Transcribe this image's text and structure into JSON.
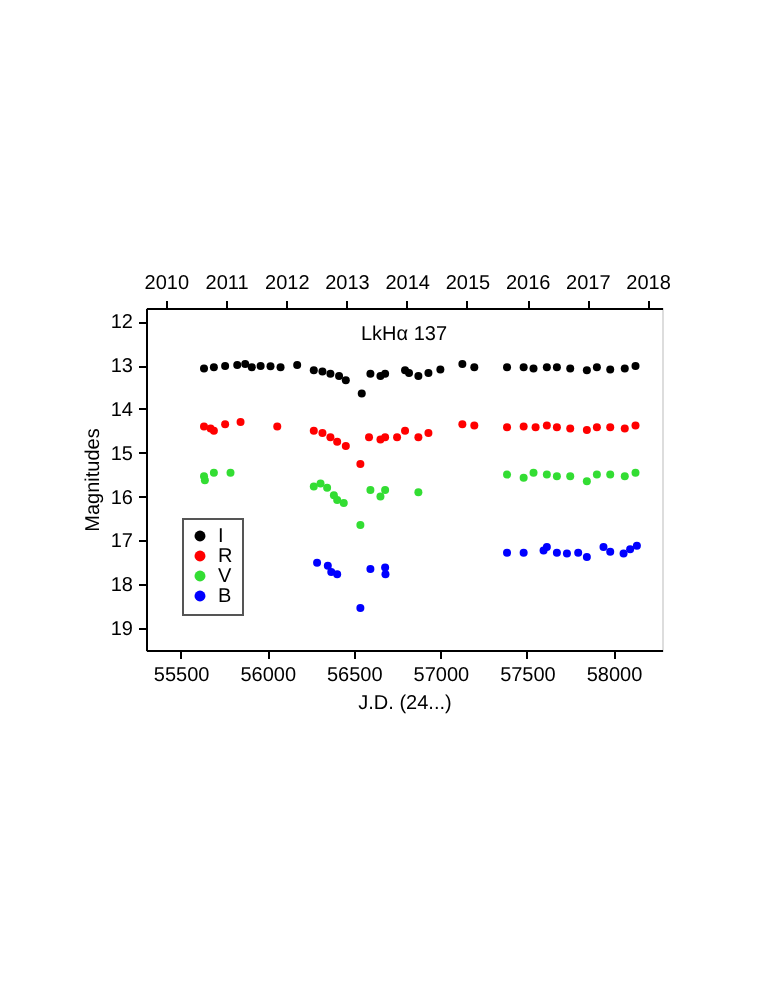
{
  "chart_data": {
    "type": "scatter",
    "title": "LkHα 137",
    "xlabel": "J.D. (24...)",
    "ylabel": "Magnitudes",
    "xlim": [
      55300,
      58280
    ],
    "xticks": [
      55500,
      56000,
      56500,
      57000,
      57500,
      58000
    ],
    "ylim": [
      19.5,
      11.7
    ],
    "yticks": [
      12,
      13,
      14,
      15,
      16,
      17,
      18,
      19
    ],
    "x2lim": [
      2009.67,
      2018.24
    ],
    "x2ticks": [
      2010,
      2011,
      2012,
      2013,
      2014,
      2015,
      2016,
      2017,
      2018
    ],
    "marker": "circle",
    "grid": false,
    "legend": "bottom left",
    "series": [
      {
        "name": "I",
        "color": "#000000",
        "x": [
          55635,
          55692,
          55757,
          55827,
          55873,
          55911,
          55962,
          56019,
          56077,
          56173,
          56269,
          56319,
          56365,
          56415,
          56454,
          56546,
          56596,
          56654,
          56681,
          56796,
          56819,
          56873,
          56931,
          57000,
          57127,
          57196,
          57385,
          57481,
          57538,
          57615,
          57673,
          57750,
          57846,
          57904,
          57981,
          58065,
          58127
        ],
        "values": [
          13.08,
          13.05,
          13.02,
          13.0,
          12.98,
          13.05,
          13.02,
          13.03,
          13.05,
          13.0,
          13.12,
          13.15,
          13.2,
          13.25,
          13.35,
          13.65,
          13.2,
          13.25,
          13.2,
          13.12,
          13.18,
          13.25,
          13.18,
          13.1,
          12.98,
          13.05,
          13.05,
          13.05,
          13.08,
          13.05,
          13.05,
          13.08,
          13.12,
          13.05,
          13.1,
          13.08,
          13.02
        ]
      },
      {
        "name": "R",
        "color": "#ff0000",
        "x": [
          55635,
          55673,
          55692,
          55757,
          55846,
          56058,
          56269,
          56319,
          56365,
          56404,
          56454,
          56538,
          56588,
          56654,
          56681,
          56750,
          56796,
          56873,
          56931,
          57127,
          57196,
          57385,
          57481,
          57550,
          57615,
          57673,
          57750,
          57846,
          57904,
          57981,
          58065,
          58127
        ],
        "values": [
          14.4,
          14.45,
          14.5,
          14.35,
          14.3,
          14.4,
          14.5,
          14.55,
          14.65,
          14.75,
          14.85,
          15.26,
          14.65,
          14.7,
          14.65,
          14.65,
          14.5,
          14.65,
          14.55,
          14.35,
          14.38,
          14.42,
          14.4,
          14.42,
          14.38,
          14.42,
          14.45,
          14.48,
          14.42,
          14.42,
          14.45,
          14.38
        ]
      },
      {
        "name": "V",
        "color": "#33dd33",
        "x": [
          55635,
          55640,
          55692,
          55788,
          56269,
          56308,
          56346,
          56385,
          56404,
          56442,
          56538,
          56596,
          56654,
          56681,
          56873,
          57385,
          57481,
          57538,
          57615,
          57673,
          57750,
          57846,
          57904,
          57981,
          58065,
          58127
        ],
        "values": [
          15.54,
          15.63,
          15.46,
          15.46,
          15.77,
          15.7,
          15.8,
          15.97,
          16.08,
          16.15,
          16.65,
          15.85,
          16.0,
          15.85,
          15.9,
          15.5,
          15.57,
          15.46,
          15.5,
          15.54,
          15.54,
          15.65,
          15.5,
          15.5,
          15.54,
          15.46
        ]
      },
      {
        "name": "B",
        "color": "#0000ff",
        "x": [
          56288,
          56350,
          56370,
          56404,
          56538,
          56596,
          56681,
          56683,
          57385,
          57481,
          57596,
          57615,
          57673,
          57731,
          57796,
          57846,
          57942,
          57981,
          58058,
          58096,
          58135
        ],
        "values": [
          17.51,
          17.58,
          17.72,
          17.77,
          18.54,
          17.65,
          17.62,
          17.77,
          17.28,
          17.28,
          17.23,
          17.15,
          17.28,
          17.3,
          17.28,
          17.38,
          17.15,
          17.26,
          17.3,
          17.2,
          17.12
        ]
      }
    ]
  }
}
